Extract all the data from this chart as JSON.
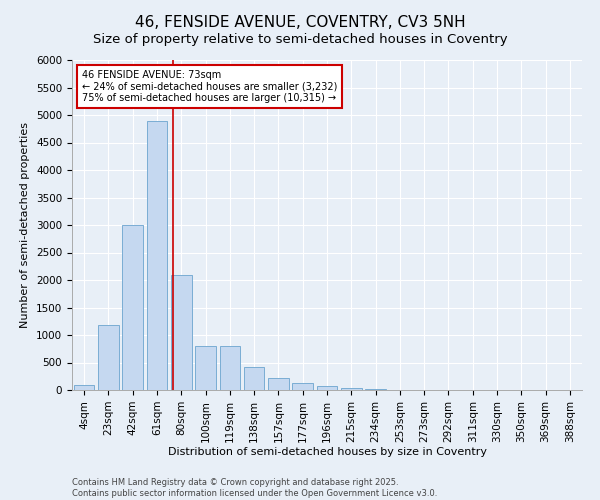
{
  "title": "46, FENSIDE AVENUE, COVENTRY, CV3 5NH",
  "subtitle": "Size of property relative to semi-detached houses in Coventry",
  "xlabel": "Distribution of semi-detached houses by size in Coventry",
  "ylabel": "Number of semi-detached properties",
  "footer_line1": "Contains HM Land Registry data © Crown copyright and database right 2025.",
  "footer_line2": "Contains public sector information licensed under the Open Government Licence v3.0.",
  "categories": [
    "4sqm",
    "23sqm",
    "42sqm",
    "61sqm",
    "80sqm",
    "100sqm",
    "119sqm",
    "138sqm",
    "157sqm",
    "177sqm",
    "196sqm",
    "215sqm",
    "234sqm",
    "253sqm",
    "273sqm",
    "292sqm",
    "311sqm",
    "330sqm",
    "350sqm",
    "369sqm",
    "388sqm"
  ],
  "values": [
    90,
    1180,
    3000,
    4900,
    2100,
    800,
    800,
    420,
    220,
    130,
    70,
    30,
    10,
    5,
    2,
    1,
    0,
    0,
    0,
    0,
    0
  ],
  "bar_color": "#c5d8f0",
  "bar_edge_color": "#7aadd4",
  "vline_color": "#cc0000",
  "vline_x_index": 3.65,
  "annotation_text": "46 FENSIDE AVENUE: 73sqm\n← 24% of semi-detached houses are smaller (3,232)\n75% of semi-detached houses are larger (10,315) →",
  "annotation_box_facecolor": "#ffffff",
  "annotation_box_edgecolor": "#cc0000",
  "ylim": [
    0,
    6000
  ],
  "yticks": [
    0,
    500,
    1000,
    1500,
    2000,
    2500,
    3000,
    3500,
    4000,
    4500,
    5000,
    5500,
    6000
  ],
  "background_color": "#e8eff7",
  "grid_color": "#ffffff",
  "title_fontsize": 11,
  "subtitle_fontsize": 9.5,
  "axis_label_fontsize": 8,
  "tick_fontsize": 7.5,
  "annotation_fontsize": 7,
  "footer_fontsize": 6
}
